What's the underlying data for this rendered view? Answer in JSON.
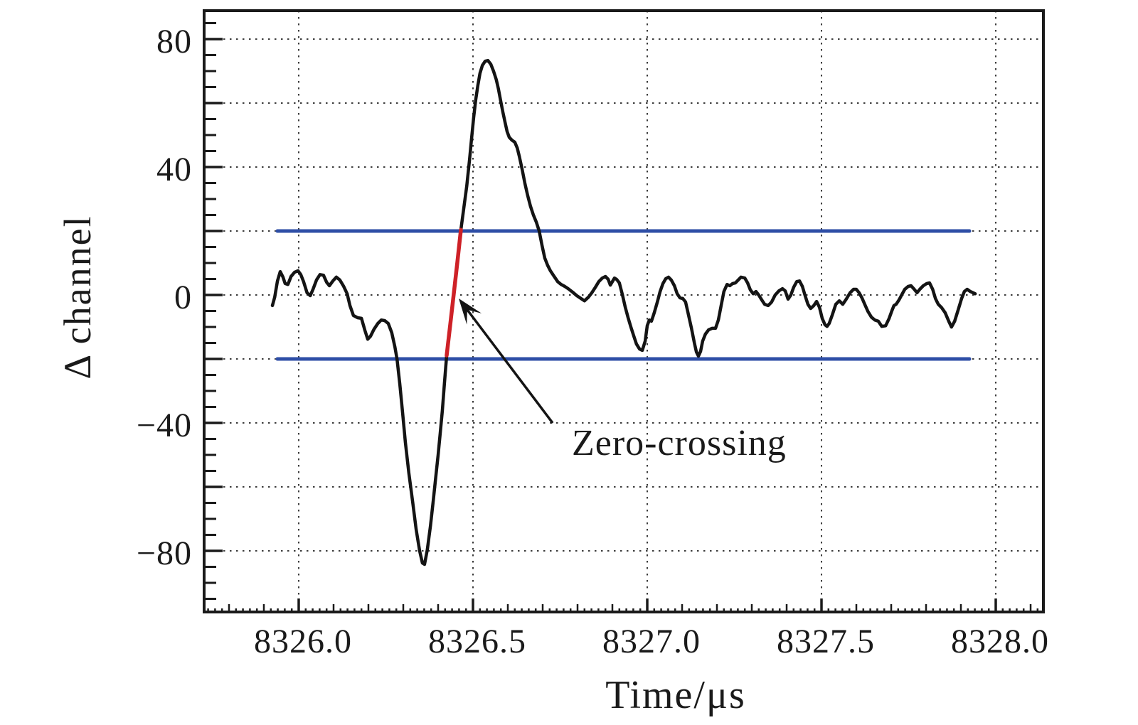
{
  "chart_data": {
    "type": "line",
    "title": "",
    "xlabel": "Time/μs",
    "ylabel": "Δ channel",
    "xlim": [
      8325.7286,
      8328.1367
    ],
    "ylim": [
      -99.1,
      88.9
    ],
    "grid": true,
    "x_major_ticks": [
      8326.0,
      8326.5,
      8327.0,
      8327.5,
      8328.0
    ],
    "x_tick_labels": [
      "8326.0",
      "8326.5",
      "8327.0",
      "8327.5",
      "8328.0"
    ],
    "x_minor_step": 0.1,
    "x_tiny_step": 0.02,
    "y_major_ticks": [
      -80,
      -60,
      -40,
      -20,
      0,
      20,
      40,
      60,
      80
    ],
    "y_labeled_ticks": [
      -80,
      -40,
      0,
      40,
      80
    ],
    "y_tick_labels": [
      "−80",
      "−40",
      "0",
      "40",
      "80"
    ],
    "y_minor_step": 5,
    "colors": {
      "trace": "#141414",
      "threshold": "#2e4ea6",
      "zero_crossing_segment": "#ce2127",
      "grid": "#3c3c3c",
      "frame": "#1a1a1a"
    },
    "thresholds": {
      "values": [
        20,
        -20
      ],
      "t_start": 8325.9388,
      "t_end": 8327.9245
    },
    "annotation": {
      "label": "Zero-crossing",
      "text_pos": [
        8326.7837,
        -50
      ],
      "arrow_from": [
        8326.7286,
        -40
      ],
      "arrow_to": [
        8326.4592,
        -1.1
      ]
    },
    "series": [
      {
        "name": "signal",
        "color": "#141414",
        "points": [
          [
            8325.9245,
            -3.3
          ],
          [
            8325.931,
            -0.7
          ],
          [
            8325.939,
            4.4
          ],
          [
            8325.947,
            7.3
          ],
          [
            8325.955,
            5.6
          ],
          [
            8325.961,
            3.6
          ],
          [
            8325.969,
            3.3
          ],
          [
            8325.978,
            5.8
          ],
          [
            8325.988,
            7.1
          ],
          [
            8325.998,
            7.6
          ],
          [
            8326.006,
            6.4
          ],
          [
            8326.014,
            4.2
          ],
          [
            8326.024,
            0.7
          ],
          [
            8326.033,
            -0.2
          ],
          [
            8326.041,
            1.8
          ],
          [
            8326.051,
            4.7
          ],
          [
            8326.061,
            6.4
          ],
          [
            8326.071,
            6.2
          ],
          [
            8326.08,
            4.0
          ],
          [
            8326.088,
            2.9
          ],
          [
            8326.098,
            4.4
          ],
          [
            8326.108,
            5.6
          ],
          [
            8326.118,
            4.7
          ],
          [
            8326.129,
            2.7
          ],
          [
            8326.139,
            0.4
          ],
          [
            8326.147,
            -3.3
          ],
          [
            8326.157,
            -6.4
          ],
          [
            8326.169,
            -7.1
          ],
          [
            8326.18,
            -7.3
          ],
          [
            8326.19,
            -11.1
          ],
          [
            8326.198,
            -13.8
          ],
          [
            8326.206,
            -12.9
          ],
          [
            8326.216,
            -10.7
          ],
          [
            8326.227,
            -8.9
          ],
          [
            8326.237,
            -7.8
          ],
          [
            8326.247,
            -8.0
          ],
          [
            8326.257,
            -8.9
          ],
          [
            8326.267,
            -11.8
          ],
          [
            8326.276,
            -16.2
          ],
          [
            8326.282,
            -20.0
          ],
          [
            8326.29,
            -27.8
          ],
          [
            8326.298,
            -36.7
          ],
          [
            8326.306,
            -46.0
          ],
          [
            8326.316,
            -55.6
          ],
          [
            8326.327,
            -64.7
          ],
          [
            8326.337,
            -73.3
          ],
          [
            8326.347,
            -80.0
          ],
          [
            8326.355,
            -83.8
          ],
          [
            8326.361,
            -84.2
          ],
          [
            8326.369,
            -79.6
          ],
          [
            8326.378,
            -72.2
          ],
          [
            8326.386,
            -64.4
          ],
          [
            8326.394,
            -56.0
          ],
          [
            8326.4,
            -50.0
          ],
          [
            8326.406,
            -43.3
          ],
          [
            8326.412,
            -36.2
          ],
          [
            8326.418,
            -27.8
          ],
          [
            8326.4245,
            -18.9
          ],
          [
            8326.4347,
            -9.3
          ],
          [
            8326.4449,
            0.4
          ],
          [
            8326.4551,
            10.2
          ],
          [
            8326.4653,
            20.4
          ],
          [
            8326.473,
            26.7
          ],
          [
            8326.482,
            34.0
          ],
          [
            8326.49,
            42.2
          ],
          [
            8326.496,
            48.9
          ],
          [
            8326.502,
            55.6
          ],
          [
            8326.508,
            61.1
          ],
          [
            8326.514,
            65.6
          ],
          [
            8326.52,
            69.3
          ],
          [
            8326.527,
            71.8
          ],
          [
            8326.535,
            73.1
          ],
          [
            8326.543,
            73.3
          ],
          [
            8326.551,
            72.2
          ],
          [
            8326.559,
            70.0
          ],
          [
            8326.567,
            67.3
          ],
          [
            8326.573,
            64.4
          ],
          [
            8326.58,
            60.4
          ],
          [
            8326.586,
            57.1
          ],
          [
            8326.592,
            54.0
          ],
          [
            8326.598,
            51.1
          ],
          [
            8326.604,
            49.3
          ],
          [
            8326.612,
            48.4
          ],
          [
            8326.62,
            47.8
          ],
          [
            8326.627,
            46.0
          ],
          [
            8326.633,
            43.3
          ],
          [
            8326.641,
            39.3
          ],
          [
            8326.649,
            34.9
          ],
          [
            8326.657,
            31.1
          ],
          [
            8326.665,
            27.8
          ],
          [
            8326.673,
            25.1
          ],
          [
            8326.682,
            22.7
          ],
          [
            8326.69,
            20.0
          ],
          [
            8326.698,
            15.6
          ],
          [
            8326.706,
            11.6
          ],
          [
            8326.714,
            9.3
          ],
          [
            8326.722,
            7.6
          ],
          [
            8326.733,
            5.8
          ],
          [
            8326.743,
            4.2
          ],
          [
            8326.753,
            3.3
          ],
          [
            8326.763,
            2.7
          ],
          [
            8326.773,
            2.0
          ],
          [
            8326.786,
            0.9
          ],
          [
            8326.798,
            -0.2
          ],
          [
            8326.81,
            -1.1
          ],
          [
            8326.82,
            -1.8
          ],
          [
            8326.831,
            -0.7
          ],
          [
            8326.841,
            0.7
          ],
          [
            8326.851,
            2.4
          ],
          [
            8326.861,
            4.2
          ],
          [
            8326.871,
            5.3
          ],
          [
            8326.88,
            5.8
          ],
          [
            8326.888,
            4.9
          ],
          [
            8326.894,
            3.1
          ],
          [
            8326.9,
            4.2
          ],
          [
            8326.906,
            5.3
          ],
          [
            8326.912,
            4.9
          ],
          [
            8326.92,
            3.8
          ],
          [
            8326.929,
            0.0
          ],
          [
            8326.937,
            -3.8
          ],
          [
            8326.945,
            -7.1
          ],
          [
            8326.953,
            -10.0
          ],
          [
            8326.961,
            -12.7
          ],
          [
            8326.969,
            -15.3
          ],
          [
            8326.978,
            -16.9
          ],
          [
            8326.986,
            -17.3
          ],
          [
            8326.994,
            -14.4
          ],
          [
            8327.0,
            -9.6
          ],
          [
            8327.006,
            -7.8
          ],
          [
            8327.012,
            -8.2
          ],
          [
            8327.02,
            -5.6
          ],
          [
            8327.029,
            -2.2
          ],
          [
            8327.037,
            1.1
          ],
          [
            8327.045,
            3.6
          ],
          [
            8327.053,
            5.1
          ],
          [
            8327.061,
            5.6
          ],
          [
            8327.069,
            4.7
          ],
          [
            8327.078,
            2.9
          ],
          [
            8327.086,
            0.4
          ],
          [
            8327.094,
            -0.9
          ],
          [
            8327.102,
            -1.1
          ],
          [
            8327.11,
            -2.2
          ],
          [
            8327.118,
            -6.0
          ],
          [
            8327.127,
            -10.4
          ],
          [
            8327.135,
            -14.9
          ],
          [
            8327.141,
            -17.8
          ],
          [
            8327.147,
            -19.1
          ],
          [
            8327.153,
            -17.6
          ],
          [
            8327.159,
            -14.4
          ],
          [
            8327.167,
            -12.2
          ],
          [
            8327.176,
            -10.9
          ],
          [
            8327.186,
            -10.4
          ],
          [
            8327.196,
            -10.4
          ],
          [
            8327.204,
            -7.8
          ],
          [
            8327.212,
            -3.3
          ],
          [
            8327.22,
            1.1
          ],
          [
            8327.229,
            3.3
          ],
          [
            8327.237,
            2.9
          ],
          [
            8327.245,
            3.6
          ],
          [
            8327.253,
            3.8
          ],
          [
            8327.261,
            4.7
          ],
          [
            8327.269,
            5.6
          ],
          [
            8327.28,
            5.3
          ],
          [
            8327.288,
            3.8
          ],
          [
            8327.296,
            1.6
          ],
          [
            8327.304,
            0.4
          ],
          [
            8327.312,
            1.1
          ],
          [
            8327.32,
            0.0
          ],
          [
            8327.329,
            -1.6
          ],
          [
            8327.337,
            -2.9
          ],
          [
            8327.347,
            -3.3
          ],
          [
            8327.357,
            -2.2
          ],
          [
            8327.367,
            0.0
          ],
          [
            8327.378,
            1.3
          ],
          [
            8327.388,
            2.0
          ],
          [
            8327.396,
            1.3
          ],
          [
            8327.404,
            -1.3
          ],
          [
            8327.412,
            0.0
          ],
          [
            8327.42,
            2.4
          ],
          [
            8327.429,
            4.2
          ],
          [
            8327.437,
            4.4
          ],
          [
            8327.445,
            2.7
          ],
          [
            8327.453,
            -0.2
          ],
          [
            8327.461,
            -2.9
          ],
          [
            8327.469,
            -4.2
          ],
          [
            8327.478,
            -3.3
          ],
          [
            8327.486,
            -2.0
          ],
          [
            8327.494,
            -3.8
          ],
          [
            8327.502,
            -7.3
          ],
          [
            8327.51,
            -9.3
          ],
          [
            8327.516,
            -9.8
          ],
          [
            8327.522,
            -8.9
          ],
          [
            8327.531,
            -6.2
          ],
          [
            8327.541,
            -2.9
          ],
          [
            8327.551,
            -1.8
          ],
          [
            8327.561,
            -2.9
          ],
          [
            8327.571,
            -1.3
          ],
          [
            8327.582,
            0.7
          ],
          [
            8327.592,
            1.8
          ],
          [
            8327.6,
            1.8
          ],
          [
            8327.608,
            0.7
          ],
          [
            8327.616,
            -0.9
          ],
          [
            8327.624,
            -2.9
          ],
          [
            8327.633,
            -5.1
          ],
          [
            8327.643,
            -6.9
          ],
          [
            8327.653,
            -7.8
          ],
          [
            8327.663,
            -8.2
          ],
          [
            8327.673,
            -9.8
          ],
          [
            8327.684,
            -9.6
          ],
          [
            8327.694,
            -7.3
          ],
          [
            8327.702,
            -4.9
          ],
          [
            8327.708,
            -3.3
          ],
          [
            8327.714,
            -2.9
          ],
          [
            8327.722,
            -1.6
          ],
          [
            8327.731,
            0.2
          ],
          [
            8327.739,
            1.8
          ],
          [
            8327.749,
            2.7
          ],
          [
            8327.757,
            2.9
          ],
          [
            8327.766,
            1.8
          ],
          [
            8327.774,
            0.7
          ],
          [
            8327.782,
            1.8
          ],
          [
            8327.792,
            2.9
          ],
          [
            8327.802,
            3.6
          ],
          [
            8327.81,
            3.8
          ],
          [
            8327.819,
            1.8
          ],
          [
            8327.827,
            -1.1
          ],
          [
            8327.835,
            -2.9
          ],
          [
            8327.845,
            -4.0
          ],
          [
            8327.855,
            -5.6
          ],
          [
            8327.865,
            -8.2
          ],
          [
            8327.873,
            -10.0
          ],
          [
            8327.882,
            -8.2
          ],
          [
            8327.892,
            -4.7
          ],
          [
            8327.902,
            -1.1
          ],
          [
            8327.91,
            1.1
          ],
          [
            8327.918,
            1.8
          ],
          [
            8327.927,
            1.1
          ],
          [
            8327.935,
            0.7
          ],
          [
            8327.941,
            0.4
          ]
        ]
      },
      {
        "name": "zero-crossing-segment",
        "color": "#ce2127",
        "points": [
          [
            8326.4245,
            -18.9
          ],
          [
            8326.4347,
            -9.3
          ],
          [
            8326.4449,
            0.4
          ],
          [
            8326.4551,
            10.2
          ],
          [
            8326.4653,
            20.4
          ]
        ]
      }
    ]
  }
}
